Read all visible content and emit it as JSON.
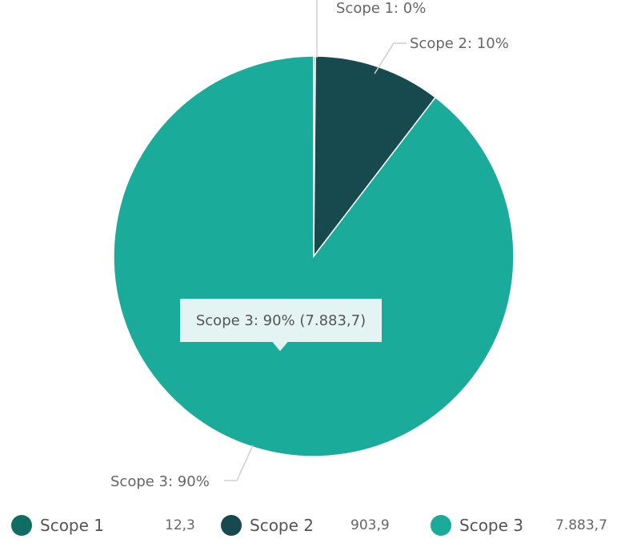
{
  "chart_data": {
    "type": "pie",
    "slices": [
      {
        "name": "Scope 1",
        "value": 12.3,
        "value_label": "12,3",
        "percent_label": "0%",
        "color": "#0f6e64"
      },
      {
        "name": "Scope 2",
        "value": 903.9,
        "value_label": "903,9",
        "percent_label": "10%",
        "color": "#174a4f"
      },
      {
        "name": "Scope 3",
        "value": 7883.7,
        "value_label": "7.883,7",
        "percent_label": "90%",
        "color": "#1aab9a"
      }
    ],
    "data_labels": [
      "Scope 1: 0%",
      "Scope 2: 10%",
      "Scope 3: 90%"
    ],
    "tooltip": "Scope 3: 90% (7.883,7)",
    "legend": "bottom"
  }
}
